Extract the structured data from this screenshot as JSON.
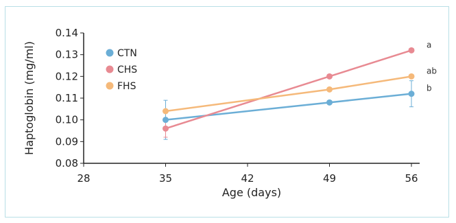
{
  "chart_data": {
    "type": "line",
    "title": "",
    "xlabel": "Age (days)",
    "ylabel": "Haptoglobin (mg/ml)",
    "x": [
      35,
      49,
      56
    ],
    "xticks": [
      28,
      35,
      42,
      49,
      56
    ],
    "xlim": [
      28,
      56
    ],
    "yticks": [
      "0.08",
      "0.09",
      "0.10",
      "0.11",
      "0.12",
      "0.13",
      "0.14"
    ],
    "ylim": [
      0.08,
      0.14
    ],
    "grid": false,
    "legend_position": "top-left",
    "series": [
      {
        "name": "CTN",
        "color": "#6baed6",
        "values": [
          0.1,
          0.108,
          0.112
        ],
        "errors": [
          0.009,
          0.0,
          0.006
        ],
        "label": "b"
      },
      {
        "name": "CHS",
        "color": "#e88a92",
        "values": [
          0.096,
          0.12,
          0.132
        ],
        "errors": [
          0.004,
          0.0,
          0.0
        ],
        "label": "a"
      },
      {
        "name": "FHS",
        "color": "#f5b97a",
        "values": [
          0.104,
          0.114,
          0.12
        ],
        "errors": [
          0.0,
          0.0,
          0.0
        ],
        "label": "ab"
      }
    ]
  }
}
